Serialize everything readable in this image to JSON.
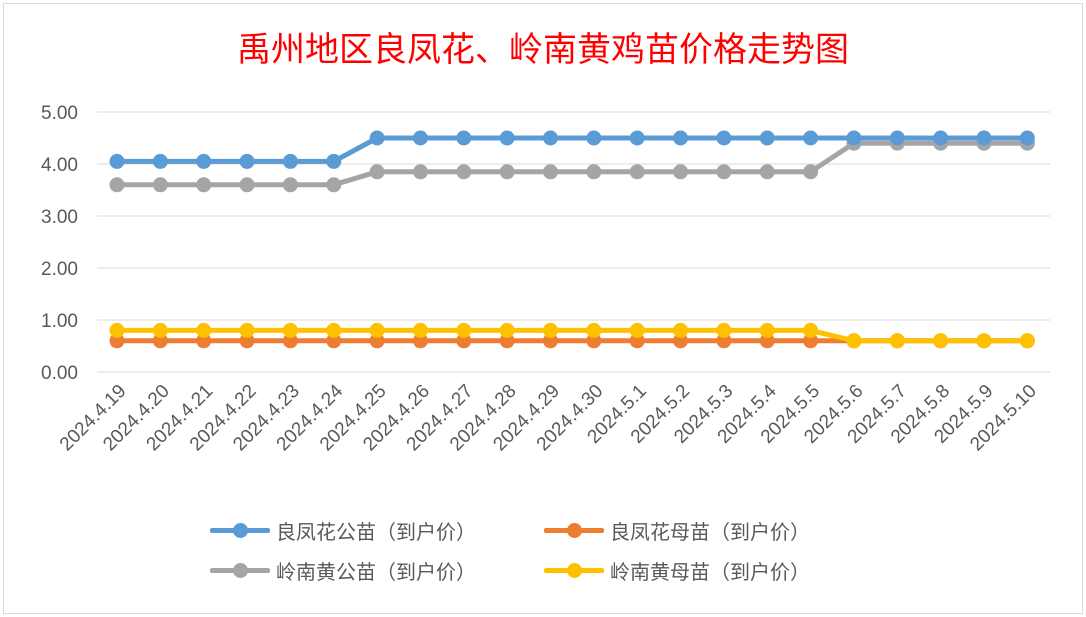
{
  "chart_data": {
    "type": "line",
    "title": "禹州地区良凤花、岭南黄鸡苗价格走势图",
    "xlabel": "",
    "ylabel": "",
    "ylim": [
      0,
      5
    ],
    "yticks": [
      "0.00",
      "1.00",
      "2.00",
      "3.00",
      "4.00",
      "5.00"
    ],
    "grid": true,
    "legend_position": "bottom",
    "categories": [
      "2024.4.19",
      "2024.4.20",
      "2024.4.21",
      "2024.4.22",
      "2024.4.23",
      "2024.4.24",
      "2024.4.25",
      "2024.4.26",
      "2024.4.27",
      "2024.4.28",
      "2024.4.29",
      "2024.4.30",
      "2024.5.1",
      "2024.5.2",
      "2024.5.3",
      "2024.5.4",
      "2024.5.5",
      "2024.5.6",
      "2024.5.7",
      "2024.5.8",
      "2024.5.9",
      "2024.5.10"
    ],
    "series": [
      {
        "name": "良凤花公苗（到户价）",
        "color": "#5b9bd5",
        "values": [
          4.05,
          4.05,
          4.05,
          4.05,
          4.05,
          4.05,
          4.5,
          4.5,
          4.5,
          4.5,
          4.5,
          4.5,
          4.5,
          4.5,
          4.5,
          4.5,
          4.5,
          4.5,
          4.5,
          4.5,
          4.5,
          4.5
        ]
      },
      {
        "name": "良凤花母苗（到户价）",
        "color": "#ed7d31",
        "values": [
          0.6,
          0.6,
          0.6,
          0.6,
          0.6,
          0.6,
          0.6,
          0.6,
          0.6,
          0.6,
          0.6,
          0.6,
          0.6,
          0.6,
          0.6,
          0.6,
          0.6,
          0.6,
          0.6,
          0.6,
          0.6,
          0.6
        ]
      },
      {
        "name": "岭南黄公苗（到户价）",
        "color": "#a5a5a5",
        "values": [
          3.6,
          3.6,
          3.6,
          3.6,
          3.6,
          3.6,
          3.85,
          3.85,
          3.85,
          3.85,
          3.85,
          3.85,
          3.85,
          3.85,
          3.85,
          3.85,
          3.85,
          4.4,
          4.4,
          4.4,
          4.4,
          4.4
        ]
      },
      {
        "name": "岭南黄母苗（到户价）",
        "color": "#ffc000",
        "values": [
          0.8,
          0.8,
          0.8,
          0.8,
          0.8,
          0.8,
          0.8,
          0.8,
          0.8,
          0.8,
          0.8,
          0.8,
          0.8,
          0.8,
          0.8,
          0.8,
          0.8,
          0.6,
          0.6,
          0.6,
          0.6,
          0.6
        ]
      }
    ],
    "draw_order": [
      2,
      0,
      1,
      3
    ]
  }
}
